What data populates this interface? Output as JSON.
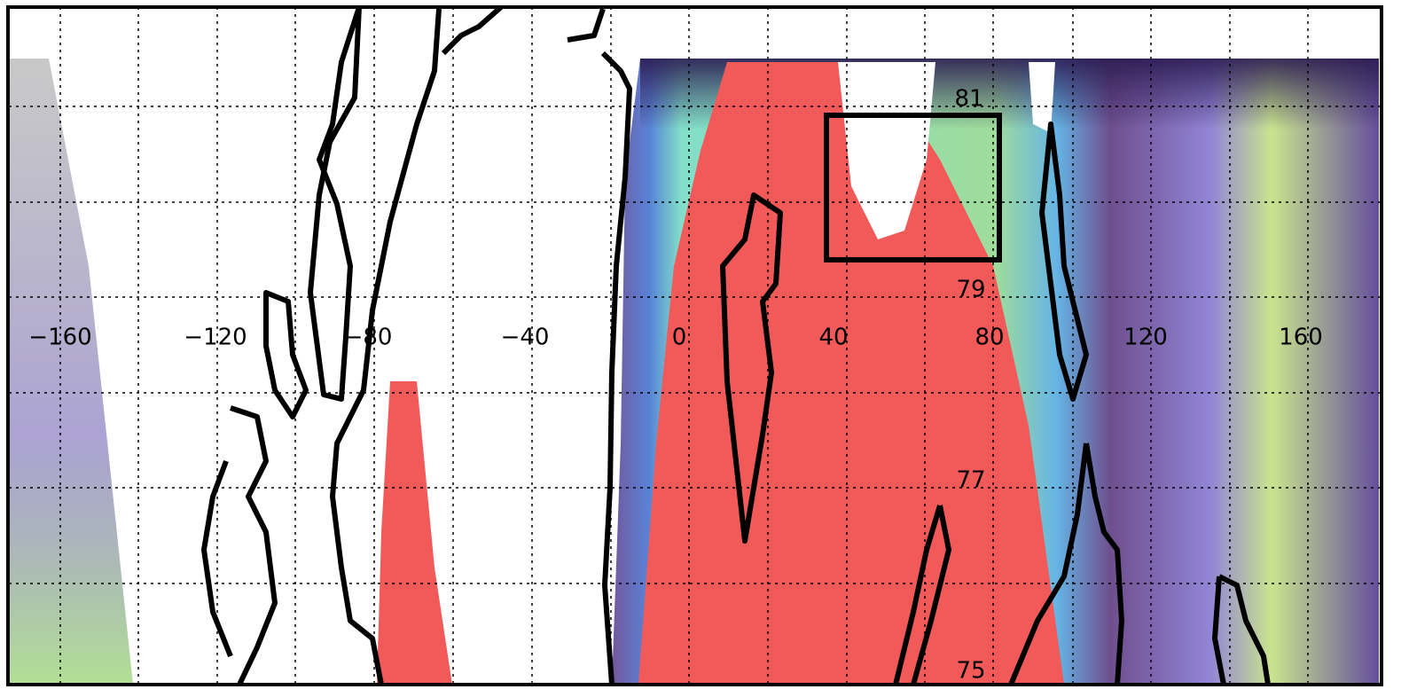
{
  "map": {
    "longitude_labels": [
      "−160",
      "−120",
      "−80",
      "−40",
      "0",
      "40",
      "80",
      "120",
      "160"
    ],
    "latitude_labels": [
      "81",
      "79",
      "77",
      "75"
    ]
  }
}
